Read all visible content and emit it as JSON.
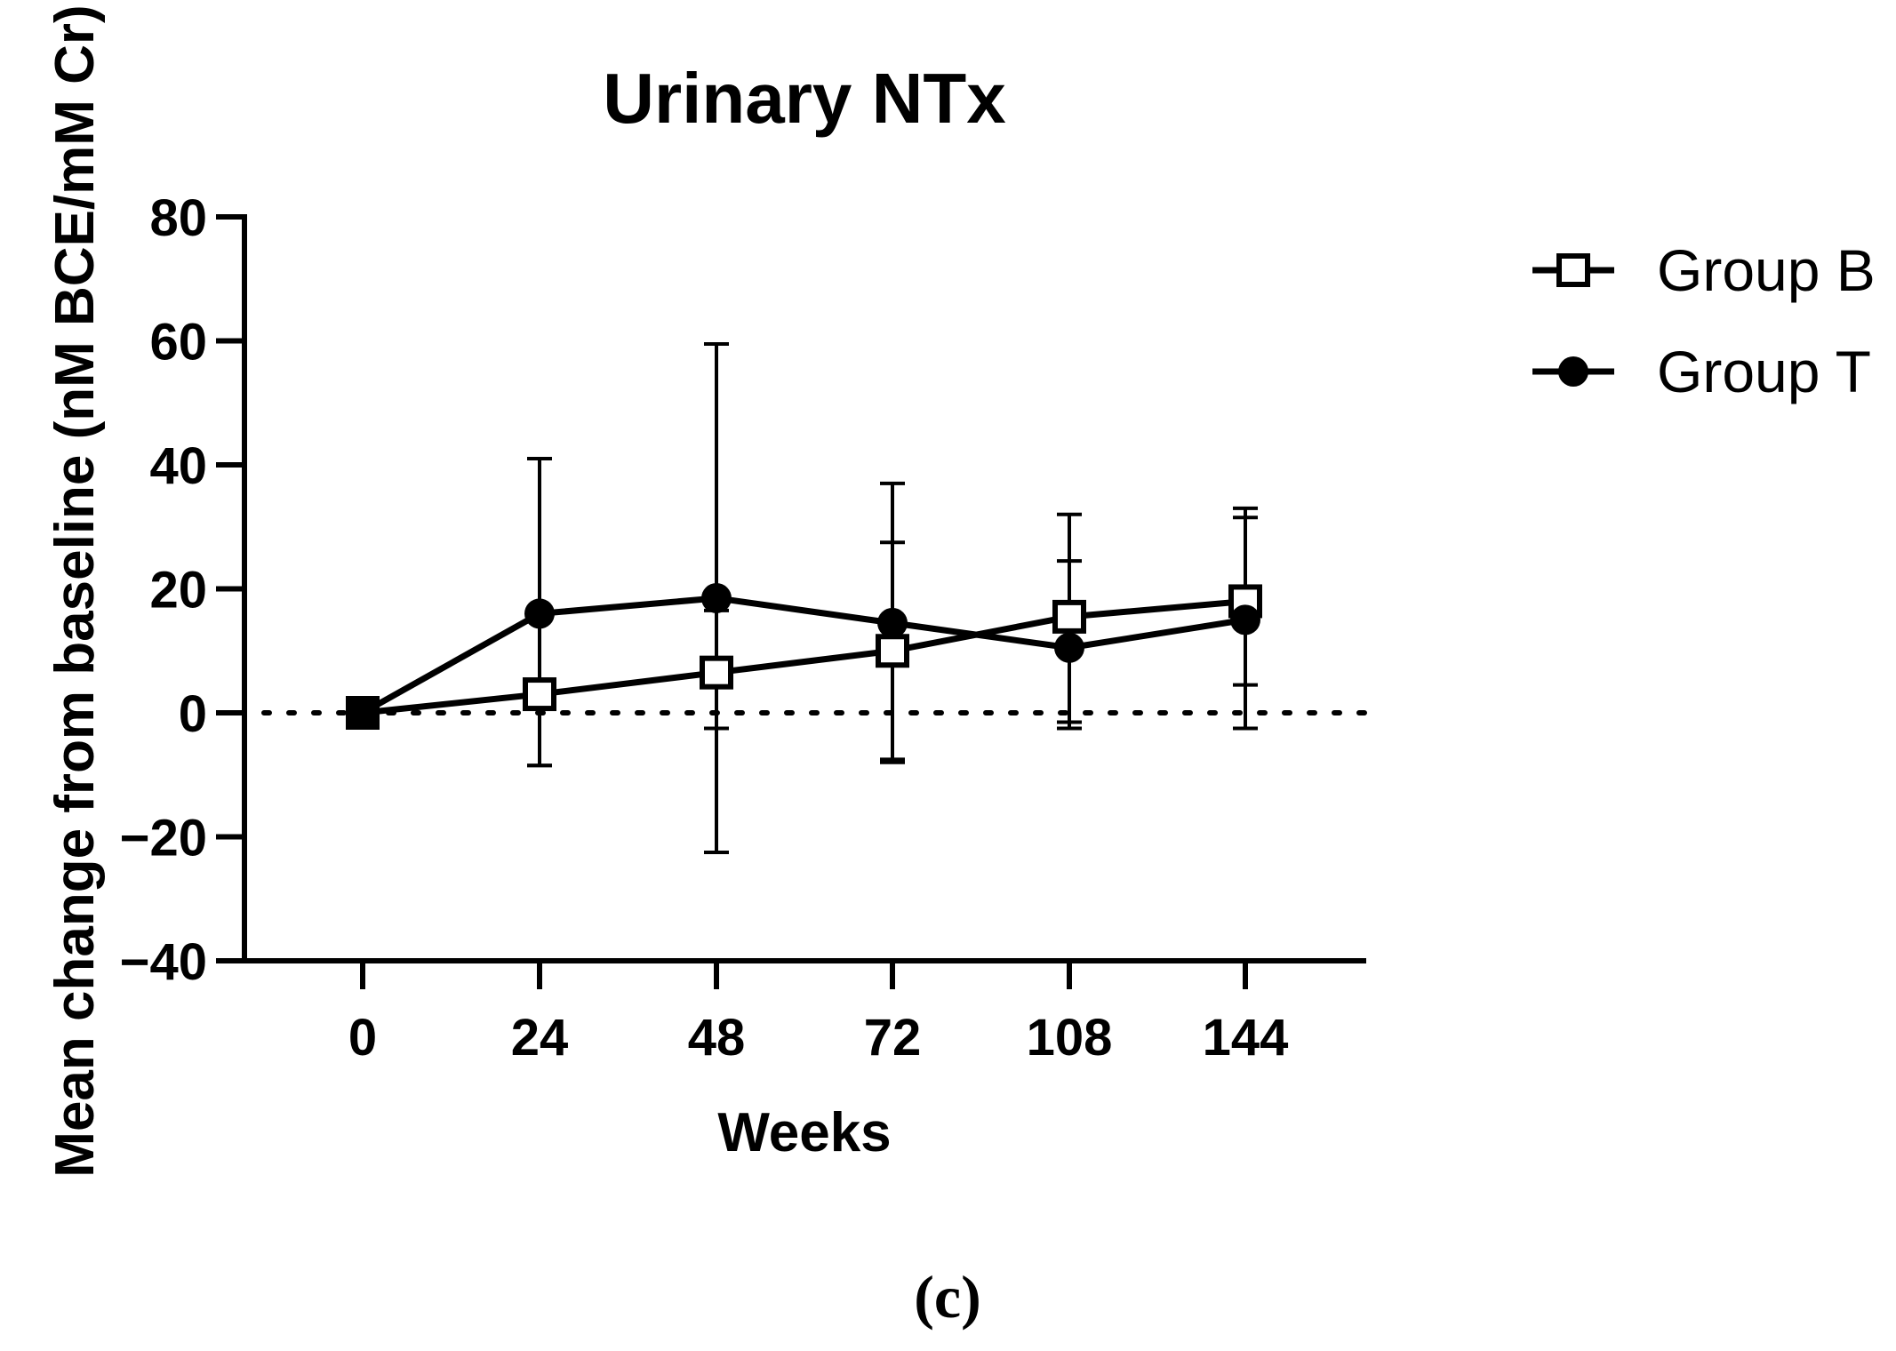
{
  "panel_label": "(c)",
  "chart_data": {
    "type": "line",
    "title": "Urinary NTx",
    "xlabel": "Weeks",
    "ylabel": "Mean change from baseline (nM BCE/mM Cr)",
    "categories": [
      "0",
      "24",
      "48",
      "72",
      "108",
      "144"
    ],
    "ylim": [
      -40,
      80
    ],
    "yticks": [
      -40,
      -20,
      0,
      20,
      40,
      60,
      80
    ],
    "ytick_labels": [
      "−40",
      "−20",
      "0",
      "20",
      "40",
      "60",
      "80"
    ],
    "reference_line": {
      "y": 0,
      "style": "dotted"
    },
    "legend_position": "top-right, outside plot",
    "series": [
      {
        "name": "Group B",
        "marker": "open-square",
        "values": [
          0,
          3,
          6.5,
          10,
          15.5,
          18
        ],
        "error_upper": [
          0,
          3,
          16.5,
          27.5,
          24.5,
          31.5
        ],
        "error_lower": [
          0,
          -8.5,
          -2.5,
          -7.5,
          -1.5,
          4.5
        ]
      },
      {
        "name": "Group T",
        "marker": "filled-circle",
        "values": [
          0,
          16,
          18.5,
          14.5,
          10.5,
          15
        ],
        "error_upper": [
          0,
          41,
          59.5,
          37,
          32,
          33
        ],
        "error_lower": [
          0,
          -8.5,
          -22.5,
          -8,
          -2.5,
          -2.5
        ]
      }
    ]
  }
}
